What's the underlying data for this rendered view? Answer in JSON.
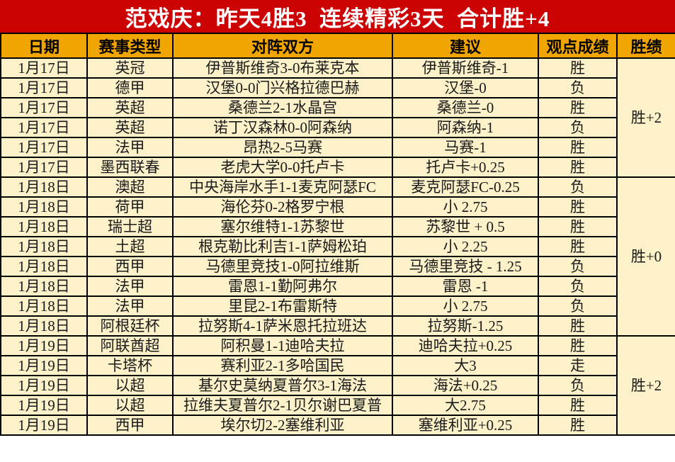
{
  "banner": {
    "title": "范戏庆：昨天4胜3  连续精彩3天  合计胜+4"
  },
  "colors": {
    "banner_bg": "#cd0303",
    "banner_text": "#ffffff",
    "header_bg": "#f0a500",
    "cell_bg": "#fcf1c9",
    "group_bg": "#c00101",
    "group_text": "#ffffff",
    "win_text": "#e60000",
    "loss_text": "#1a1a1a",
    "grid_line": "#000000"
  },
  "table": {
    "headers": [
      "日期",
      "赛事类型",
      "对阵双方",
      "建议",
      "观点成绩",
      "胜绩"
    ],
    "rows": [
      {
        "date": "1月17日",
        "league": "英冠",
        "match": "伊普斯维奇3-0布莱克本",
        "suggestion": "伊普斯维奇-1",
        "result": "胜",
        "result_type": "win"
      },
      {
        "date": "1月17日",
        "league": "德甲",
        "match": "汉堡0-0门兴格拉德巴赫",
        "suggestion": "汉堡-0",
        "result": "负",
        "result_type": "loss"
      },
      {
        "date": "1月17日",
        "league": "英超",
        "match": "桑德兰2-1水晶宫",
        "suggestion": "桑德兰-0",
        "result": "胜",
        "result_type": "win"
      },
      {
        "date": "1月17日",
        "league": "英超",
        "match": "诺丁汉森林0-0阿森纳",
        "suggestion": "阿森纳-1",
        "result": "负",
        "result_type": "loss"
      },
      {
        "date": "1月17日",
        "league": "法甲",
        "match": "昂热2-5马赛",
        "suggestion": "马赛-1",
        "result": "胜",
        "result_type": "win"
      },
      {
        "date": "1月17日",
        "league": "墨西联春",
        "match": "老虎大学0-0托卢卡",
        "suggestion": "托卢卡+0.25",
        "result": "胜",
        "result_type": "win"
      },
      {
        "date": "1月18日",
        "league": "澳超",
        "match": "中央海岸水手1-1麦克阿瑟FC",
        "suggestion": "麦克阿瑟FC-0.25",
        "result": "负",
        "result_type": "loss"
      },
      {
        "date": "1月18日",
        "league": "荷甲",
        "match": "海伦芬0-2格罗宁根",
        "suggestion": "小 2.75",
        "result": "胜",
        "result_type": "win"
      },
      {
        "date": "1月18日",
        "league": "瑞士超",
        "match": "塞尔维特1-1苏黎世",
        "suggestion": "苏黎世 + 0.5",
        "result": "胜",
        "result_type": "win"
      },
      {
        "date": "1月18日",
        "league": "土超",
        "match": "根克勒比利吉1-1萨姆松珀",
        "suggestion": "小 2.25",
        "result": "胜",
        "result_type": "win"
      },
      {
        "date": "1月18日",
        "league": "西甲",
        "match": "马德里竞技1-0阿拉维斯",
        "suggestion": "马德里竞技 - 1.25",
        "result": "负",
        "result_type": "loss"
      },
      {
        "date": "1月18日",
        "league": "法甲",
        "match": "雷恩1-1勤阿弗尔",
        "suggestion": "雷恩 -1",
        "result": "负",
        "result_type": "loss"
      },
      {
        "date": "1月18日",
        "league": "法甲",
        "match": "里昆2-1布雷斯特",
        "suggestion": "小 2.75",
        "result": "负",
        "result_type": "loss"
      },
      {
        "date": "1月18日",
        "league": "阿根廷杯",
        "match": "拉努斯4-1萨米恩托拉班达",
        "suggestion": "拉努斯-1.25",
        "result": "胜",
        "result_type": "win"
      },
      {
        "date": "1月19日",
        "league": "阿联酋超",
        "match": "阿积曼1-1迪哈夫拉",
        "suggestion": "迪哈夫拉+0.25",
        "result": "胜",
        "result_type": "win"
      },
      {
        "date": "1月19日",
        "league": "卡塔杯",
        "match": "赛利亚2-1多哈国民",
        "suggestion": "大3",
        "result": "走",
        "result_type": "win"
      },
      {
        "date": "1月19日",
        "league": "以超",
        "match": "基尔史莫纳夏普尔3-1海法",
        "suggestion": "海法+0.25",
        "result": "负",
        "result_type": "loss"
      },
      {
        "date": "1月19日",
        "league": "以超",
        "match": "拉维夫夏普尔2-1贝尔谢巴夏普",
        "suggestion": "大2.75",
        "result": "胜",
        "result_type": "win"
      },
      {
        "date": "1月19日",
        "league": "西甲",
        "match": "埃尔切2-2塞维利亚",
        "suggestion": "塞维利亚+0.25",
        "result": "胜",
        "result_type": "win"
      }
    ],
    "groups": [
      {
        "label": "胜+2",
        "span": 6
      },
      {
        "label": "胜+0",
        "span": 8
      },
      {
        "label": "胜+2",
        "span": 5
      }
    ]
  }
}
